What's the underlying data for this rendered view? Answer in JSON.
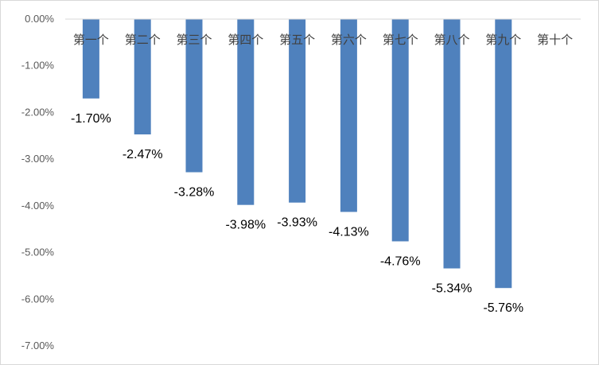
{
  "chart_data": {
    "type": "bar",
    "title": "",
    "xlabel": "",
    "ylabel": "",
    "categories": [
      "第一个",
      "第二个",
      "第三个",
      "第四个",
      "第五个",
      "第六个",
      "第七个",
      "第八个",
      "第九个",
      "第十个"
    ],
    "values": [
      -1.7,
      -2.47,
      -3.28,
      -3.98,
      -3.93,
      -4.13,
      -4.76,
      -5.34,
      -5.76,
      null
    ],
    "data_labels": [
      "-1.70%",
      "-2.47%",
      "-3.28%",
      "-3.98%",
      "-3.93%",
      "-4.13%",
      "-4.76%",
      "-5.34%",
      "-5.76%",
      ""
    ],
    "ylim": [
      -7,
      0
    ],
    "y_ticks": [
      0,
      -1,
      -2,
      -3,
      -4,
      -5,
      -6,
      -7
    ],
    "y_tick_labels": [
      "0.00%",
      "-1.00%",
      "-2.00%",
      "-3.00%",
      "-4.00%",
      "-5.00%",
      "-6.00%",
      "-7.00%"
    ],
    "bar_color": "#4F81BD",
    "grid": false,
    "legend": "none"
  }
}
